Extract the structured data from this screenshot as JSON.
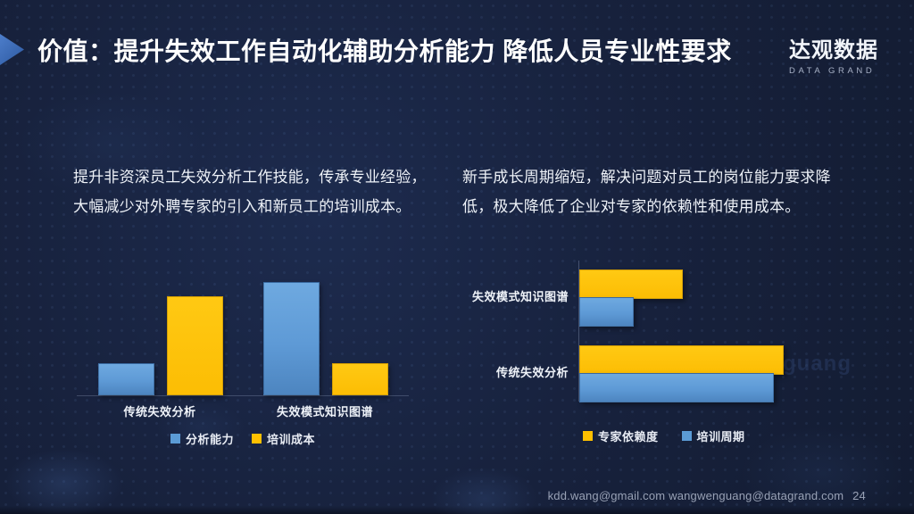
{
  "slide": {
    "title": "价值：提升失效工作自动化辅助分析能力 降低人员专业性要求",
    "logo": {
      "cn": "达观数据",
      "en": "DATA GRAND"
    },
    "paragraph_left": "提升非资深员工失效分析工作技能，传承专业经验，大幅减少对外聘专家的引入和新员工的培训成本。",
    "paragraph_right": "新手成长周期缩短，解决问题对员工的岗位能力要求降低，极大降低了企业对专家的依赖性和使用成本。",
    "watermark": "wangwenguang",
    "footer": {
      "emails": "kdd.wang@gmail.com  wangwenguang@datagrand.com",
      "page": "24"
    }
  },
  "colors": {
    "background": "#17213C",
    "accent_blue": "#5B9BD5",
    "accent_yellow": "#FFC000",
    "title_text": "#FFFFFF",
    "body_text": "#EEF2F8"
  },
  "chart_data": [
    {
      "type": "bar",
      "orientation": "vertical",
      "title": "",
      "categories": [
        "传统失效分析",
        "失效模式知识图谱"
      ],
      "series": [
        {
          "name": "分析能力",
          "color": "#5B9BD5",
          "values": [
            27,
            100
          ]
        },
        {
          "name": "培训成本",
          "color": "#FFC000",
          "values": [
            87,
            27
          ]
        }
      ],
      "ylim": [
        0,
        100
      ],
      "grid": false,
      "legend_position": "bottom"
    },
    {
      "type": "bar",
      "orientation": "horizontal",
      "title": "",
      "categories": [
        "失效模式知识图谱",
        "传统失效分析"
      ],
      "series": [
        {
          "name": "专家依赖度",
          "color": "#FFC000",
          "values": [
            50,
            100
          ]
        },
        {
          "name": "培训周期",
          "color": "#5B9BD5",
          "values": [
            26,
            95
          ]
        }
      ],
      "xlim": [
        0,
        100
      ],
      "grid": false,
      "legend_position": "bottom"
    }
  ]
}
